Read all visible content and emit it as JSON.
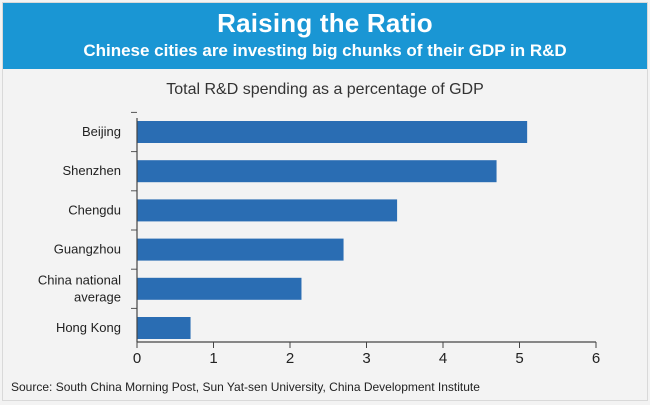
{
  "header": {
    "title": "Raising the Ratio",
    "subtitle": "Chinese cities are investing big chunks of their GDP in R&D"
  },
  "source": "Source: South China Morning Post, Sun Yat-sen University, China Development Institute",
  "colors": {
    "banner": "#1a96d4",
    "bar": "#2a6db3",
    "background": "#f3f3f3"
  },
  "chart_data": {
    "type": "bar",
    "orientation": "horizontal",
    "title": "Total R&D spending as a percentage of GDP",
    "categories": [
      "Beijing",
      "Shenzhen",
      "Chengdu",
      "Guangzhou",
      "China national average",
      "Hong Kong"
    ],
    "category_lines": [
      [
        "Beijing"
      ],
      [
        "Shenzhen"
      ],
      [
        "Chengdu"
      ],
      [
        "Guangzhou"
      ],
      [
        "China national",
        "average"
      ],
      [
        "Hong Kong"
      ]
    ],
    "values": [
      5.1,
      4.7,
      3.4,
      2.7,
      2.15,
      0.7
    ],
    "xlim": [
      0,
      6
    ],
    "xticks": [
      0,
      1,
      2,
      3,
      4,
      5,
      6
    ],
    "xlabel": "",
    "ylabel": "",
    "grid": false,
    "legend": "none"
  }
}
